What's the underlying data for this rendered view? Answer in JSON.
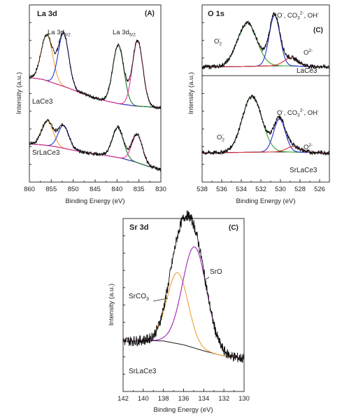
{
  "chart_data": [
    {
      "type": "line",
      "panel_label": "(A)",
      "title": "La 3d",
      "xlabel": "Binding Energy (eV)",
      "ylabel": "Intensity (a.u.)",
      "xlim": [
        860,
        830
      ],
      "x_reversed": true,
      "ylim": [
        0,
        1
      ],
      "y_tick_labels": false,
      "xticks": [
        860,
        855,
        850,
        845,
        840,
        835,
        830
      ],
      "annotations": [
        {
          "text": "La 3d",
          "sub": "3/2",
          "x": 853.5
        },
        {
          "text": "La 3d",
          "sub": "5/2",
          "x": 836.8
        }
      ],
      "spectra": [
        {
          "sample": "LaCe3",
          "background": [
            [
              860,
              0.59
            ],
            [
              857,
              0.58
            ],
            [
              854,
              0.555
            ],
            [
              851,
              0.53
            ],
            [
              848,
              0.5
            ],
            [
              845,
              0.475
            ],
            [
              842,
              0.455
            ],
            [
              839,
              0.44
            ],
            [
              836,
              0.43
            ],
            [
              833,
              0.425
            ],
            [
              830,
              0.42
            ]
          ],
          "peaks": [
            {
              "center": 856.0,
              "height": 0.26,
              "sigma": 1.3,
              "color": "#f5a33a"
            },
            {
              "center": 852.2,
              "height": 0.3,
              "sigma": 1.2,
              "color": "#2a35d8"
            },
            {
              "center": 839.7,
              "height": 0.33,
              "sigma": 1.25,
              "color": "#1e7a2a"
            },
            {
              "center": 835.3,
              "height": 0.37,
              "sigma": 1.2,
              "color": "#e8359a"
            }
          ]
        },
        {
          "sample": "SrLaCe3",
          "background": [
            [
              860,
              0.215
            ],
            [
              857,
              0.21
            ],
            [
              854,
              0.2
            ],
            [
              851,
              0.185
            ],
            [
              848,
              0.17
            ],
            [
              845,
              0.16
            ],
            [
              842,
              0.148
            ],
            [
              839,
              0.135
            ],
            [
              836,
              0.115
            ],
            [
              833,
              0.09
            ],
            [
              830,
              0.07
            ]
          ],
          "peaks": [
            {
              "center": 855.9,
              "height": 0.14,
              "sigma": 1.3,
              "color": "#f5a33a"
            },
            {
              "center": 852.2,
              "height": 0.13,
              "sigma": 1.2,
              "color": "#2a35d8"
            },
            {
              "center": 839.8,
              "height": 0.17,
              "sigma": 1.25,
              "color": "#1e7a2a"
            },
            {
              "center": 835.4,
              "height": 0.16,
              "sigma": 1.2,
              "color": "#e8359a"
            }
          ]
        }
      ]
    },
    {
      "type": "line",
      "panel_label": "(C)",
      "title": "O 1s",
      "xlabel": "Binding Energy (eV)",
      "ylabel": "Intensity (a.u.)",
      "xlim": [
        538,
        525
      ],
      "x_reversed": true,
      "ylim": [
        0,
        1
      ],
      "y_tick_labels": false,
      "xticks": [
        538,
        536,
        534,
        532,
        530,
        528,
        526
      ],
      "annotations": [
        {
          "text": "O2-",
          "x": 532.5
        },
        {
          "text": "O-, CO3 2-, OH-",
          "x": 528.0
        },
        {
          "text": "O2-",
          "x": 528.5
        }
      ],
      "spectra": [
        {
          "sample": "LaCe3",
          "background": [
            [
              538,
              0.65
            ],
            [
              534,
              0.652
            ],
            [
              531,
              0.656
            ],
            [
              529,
              0.656
            ],
            [
              527,
              0.652
            ],
            [
              525,
              0.65
            ]
          ],
          "peaks": [
            {
              "center": 533.4,
              "height": 0.245,
              "sigma": 1.0,
              "color": "#2ea02e"
            },
            {
              "center": 530.6,
              "height": 0.285,
              "sigma": 0.55,
              "color": "#2a35d8"
            },
            {
              "center": 528.9,
              "height": 0.045,
              "sigma": 0.75,
              "color": "#d83030"
            }
          ]
        },
        {
          "sample": "SrLaCe3",
          "background": [
            [
              538,
              0.165
            ],
            [
              534,
              0.168
            ],
            [
              531,
              0.17
            ],
            [
              529,
              0.17
            ],
            [
              527,
              0.168
            ],
            [
              525,
              0.165
            ]
          ],
          "peaks": [
            {
              "center": 532.9,
              "height": 0.315,
              "sigma": 1.0,
              "color": "#2ea02e"
            },
            {
              "center": 530.1,
              "height": 0.185,
              "sigma": 0.6,
              "color": "#2a35d8"
            },
            {
              "center": 528.7,
              "height": 0.03,
              "sigma": 0.7,
              "color": "#d83030"
            }
          ]
        }
      ]
    },
    {
      "type": "line",
      "panel_label": "(C)",
      "title": "Sr 3d",
      "xlabel": "Binding Energy (eV)",
      "ylabel": "Intensity (a.u.)",
      "xlim": [
        142,
        130
      ],
      "x_reversed": true,
      "ylim": [
        0,
        1
      ],
      "y_tick_labels": false,
      "xticks": [
        142,
        140,
        138,
        136,
        134,
        132,
        130
      ],
      "annotations": [
        {
          "text": "SrCO3",
          "x": 138.3
        },
        {
          "text": "SrO",
          "x": 132.8
        }
      ],
      "spectra": [
        {
          "sample": "SrLaCe3",
          "background": [
            [
              142,
              0.29
            ],
            [
              140,
              0.295
            ],
            [
              138,
              0.292
            ],
            [
              136,
              0.27
            ],
            [
              134,
              0.235
            ],
            [
              132,
              0.205
            ],
            [
              130,
              0.19
            ]
          ],
          "peaks": [
            {
              "center": 136.6,
              "height": 0.41,
              "sigma": 1.05,
              "color": "#f0a030"
            },
            {
              "center": 134.9,
              "height": 0.585,
              "sigma": 1.2,
              "color": "#a020b8"
            }
          ]
        }
      ]
    }
  ],
  "labels": {
    "panel_a_title": "La 3d",
    "panel_a_tag": "(A)",
    "panel_a_peak1": "La 3d",
    "panel_a_peak1_sub": "3/2",
    "panel_a_peak2": "La 3d",
    "panel_a_peak2_sub": "5/2",
    "panel_a_sample1": "LaCe3",
    "panel_a_sample2": "SrLaCe3",
    "panel_b_title": "O 1s",
    "panel_b_tag": "(C)",
    "panel_b_sample1": "LaCe3",
    "panel_b_sample2": "SrLaCe3",
    "panel_c_title": "Sr 3d",
    "panel_c_tag": "(C)",
    "panel_c_srco3": "SrCO",
    "panel_c_srco3_sub": "3",
    "panel_c_sro": "SrO",
    "panel_c_sample": "SrLaCe3",
    "xlabel": "Binding Energy (eV)",
    "ylabel": "Intensity (a.u.)",
    "o_major": "O",
    "o_major_sup": "-",
    "o_sep": ", CO",
    "o_sub3": "3",
    "o_sup2": "2-",
    "o_oh": ", OH",
    "o_oh_sup": "-",
    "o2_small": "O",
    "o2_small_sup": "2-",
    "o2_left": "O",
    "o2_left_sub": "2",
    "o2_left_sup": "-"
  }
}
